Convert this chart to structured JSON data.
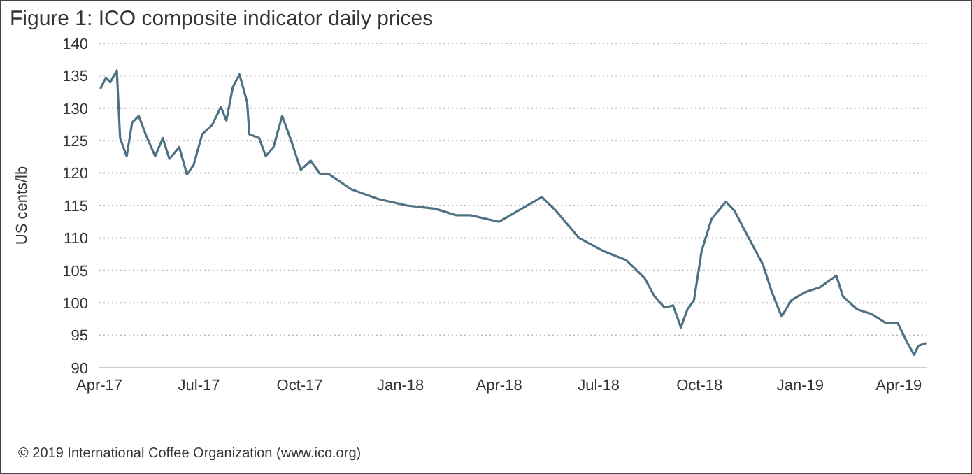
{
  "chart_data": {
    "type": "line",
    "title": "Figure 1: ICO composite indicator daily prices",
    "ylabel": "US cents/lb",
    "annotations": [
      "© 2019 International Coffee Organization (www.ico.org)"
    ],
    "x": [
      "2017-04-02",
      "2017-04-07",
      "2017-04-11",
      "2017-04-17",
      "2017-04-20",
      "2017-04-26",
      "2017-05-01",
      "2017-05-07",
      "2017-05-14",
      "2017-05-22",
      "2017-05-29",
      "2017-06-04",
      "2017-06-13",
      "2017-06-20",
      "2017-06-26",
      "2017-07-04",
      "2017-07-13",
      "2017-07-21",
      "2017-07-26",
      "2017-08-01",
      "2017-08-07",
      "2017-08-14",
      "2017-08-16",
      "2017-08-25",
      "2017-08-31",
      "2017-09-07",
      "2017-09-15",
      "2017-09-24",
      "2017-10-02",
      "2017-10-11",
      "2017-10-20",
      "2017-10-28",
      "2017-11-17",
      "2017-12-12",
      "2018-01-07",
      "2018-02-02",
      "2018-02-21",
      "2018-03-06",
      "2018-04-01",
      "2018-05-10",
      "2018-05-23",
      "2018-06-13",
      "2018-07-05",
      "2018-07-26",
      "2018-08-12",
      "2018-08-21",
      "2018-08-30",
      "2018-09-07",
      "2018-09-14",
      "2018-09-20",
      "2018-09-26",
      "2018-10-03",
      "2018-10-12",
      "2018-10-25",
      "2018-11-02",
      "2018-11-15",
      "2018-11-28",
      "2018-12-06",
      "2018-12-15",
      "2018-12-24",
      "2019-01-06",
      "2019-01-19",
      "2019-02-03",
      "2019-02-09",
      "2019-02-22",
      "2019-03-07",
      "2019-03-20",
      "2019-03-31",
      "2019-04-08",
      "2019-04-15",
      "2019-04-19",
      "2019-04-26"
    ],
    "series": [
      {
        "color": "#4e7283",
        "values": [
          133.0,
          134.7,
          134.0,
          135.8,
          125.4,
          122.6,
          127.8,
          128.8,
          125.7,
          122.6,
          125.4,
          122.2,
          124.0,
          119.8,
          121.2,
          126.0,
          127.4,
          130.2,
          128.1,
          133.3,
          135.2,
          130.9,
          126.0,
          125.4,
          122.6,
          124.0,
          128.8,
          124.6,
          120.5,
          121.9,
          119.8,
          119.8,
          117.5,
          116.0,
          115.0,
          114.5,
          113.5,
          113.5,
          112.5,
          116.3,
          114.2,
          110.0,
          108.0,
          106.6,
          103.8,
          101.0,
          99.3,
          99.6,
          96.2,
          99.0,
          100.4,
          108.0,
          112.9,
          115.6,
          114.2,
          110.0,
          105.9,
          101.7,
          97.9,
          100.4,
          101.7,
          102.4,
          104.2,
          101.0,
          99.0,
          98.3,
          96.9,
          96.9,
          94.1,
          92.0,
          93.4,
          93.8
        ]
      }
    ],
    "xlim": [
      "2017-04-01",
      "2019-04-27"
    ],
    "xticks": [
      {
        "value": "2017-04-01",
        "label": "Apr-17"
      },
      {
        "value": "2017-07-01",
        "label": "Jul-17"
      },
      {
        "value": "2017-10-01",
        "label": "Oct-17"
      },
      {
        "value": "2018-01-01",
        "label": "Jan-18"
      },
      {
        "value": "2018-04-01",
        "label": "Apr-18"
      },
      {
        "value": "2018-07-01",
        "label": "Jul-18"
      },
      {
        "value": "2018-10-01",
        "label": "Oct-18"
      },
      {
        "value": "2019-01-01",
        "label": "Jan-19"
      },
      {
        "value": "2019-04-01",
        "label": "Apr-19"
      }
    ],
    "ylim": [
      90,
      140
    ],
    "yticks": [
      90,
      95,
      100,
      105,
      110,
      115,
      120,
      125,
      130,
      135,
      140
    ],
    "grid": "y",
    "legend": false,
    "marker": "none",
    "line_style": "solid"
  }
}
